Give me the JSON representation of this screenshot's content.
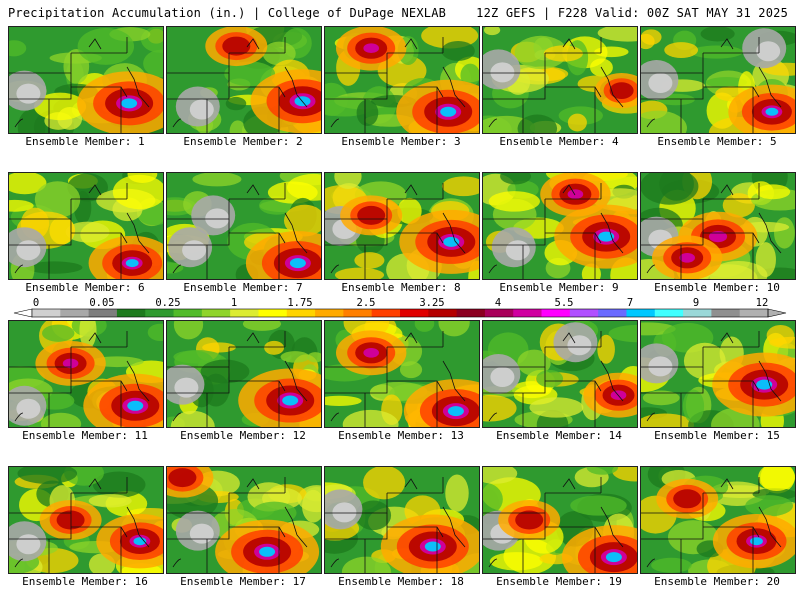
{
  "header": {
    "left": "Precipitation Accumulation (in.) | College of DuPage NEXLAB",
    "right": "12Z GEFS | F228 Valid: 00Z SAT MAY 31 2025"
  },
  "member_prefix": "Ensemble Member: ",
  "members": [
    {
      "id": 1,
      "hot": [
        [
          0.78,
          0.72,
          1.0
        ]
      ],
      "cold": [
        [
          0.1,
          0.6
        ]
      ]
    },
    {
      "id": 2,
      "hot": [
        [
          0.88,
          0.7,
          1.0
        ],
        [
          0.45,
          0.18,
          0.5
        ]
      ],
      "cold": [
        [
          0.2,
          0.75
        ]
      ]
    },
    {
      "id": 3,
      "hot": [
        [
          0.8,
          0.8,
          1.0
        ],
        [
          0.3,
          0.2,
          0.6
        ]
      ],
      "cold": []
    },
    {
      "id": 4,
      "hot": [
        [
          0.9,
          0.6,
          0.4
        ]
      ],
      "cold": [
        [
          0.1,
          0.4
        ]
      ]
    },
    {
      "id": 5,
      "hot": [
        [
          0.85,
          0.8,
          0.8
        ]
      ],
      "cold": [
        [
          0.1,
          0.5
        ],
        [
          0.8,
          0.2
        ]
      ]
    },
    {
      "id": 6,
      "hot": [
        [
          0.8,
          0.85,
          0.8
        ]
      ],
      "cold": [
        [
          0.1,
          0.7
        ]
      ]
    },
    {
      "id": 7,
      "hot": [
        [
          0.85,
          0.85,
          1.0
        ]
      ],
      "cold": [
        [
          0.15,
          0.7
        ],
        [
          0.3,
          0.4
        ]
      ]
    },
    {
      "id": 8,
      "hot": [
        [
          0.82,
          0.65,
          1.0
        ],
        [
          0.3,
          0.4,
          0.5
        ]
      ],
      "cold": [
        [
          0.1,
          0.5
        ]
      ]
    },
    {
      "id": 9,
      "hot": [
        [
          0.8,
          0.6,
          1.0
        ],
        [
          0.6,
          0.2,
          0.6
        ]
      ],
      "cold": [
        [
          0.2,
          0.7
        ]
      ]
    },
    {
      "id": 10,
      "hot": [
        [
          0.5,
          0.6,
          0.7
        ],
        [
          0.3,
          0.8,
          0.6
        ]
      ],
      "cold": [
        [
          0.1,
          0.6
        ]
      ]
    },
    {
      "id": 11,
      "hot": [
        [
          0.82,
          0.8,
          1.0
        ],
        [
          0.4,
          0.4,
          0.6
        ]
      ],
      "cold": [
        [
          0.1,
          0.8
        ]
      ]
    },
    {
      "id": 12,
      "hot": [
        [
          0.8,
          0.75,
          1.0
        ]
      ],
      "cold": [
        [
          0.1,
          0.6
        ]
      ]
    },
    {
      "id": 13,
      "hot": [
        [
          0.85,
          0.85,
          1.0
        ],
        [
          0.3,
          0.3,
          0.6
        ]
      ],
      "cold": []
    },
    {
      "id": 14,
      "hot": [
        [
          0.88,
          0.7,
          0.6
        ]
      ],
      "cold": [
        [
          0.1,
          0.5
        ],
        [
          0.6,
          0.2
        ]
      ]
    },
    {
      "id": 15,
      "hot": [
        [
          0.8,
          0.6,
          1.0
        ]
      ],
      "cold": [
        [
          0.1,
          0.4
        ]
      ]
    },
    {
      "id": 16,
      "hot": [
        [
          0.85,
          0.7,
          0.8
        ],
        [
          0.4,
          0.5,
          0.5
        ]
      ],
      "cold": [
        [
          0.1,
          0.7
        ]
      ]
    },
    {
      "id": 17,
      "hot": [
        [
          0.65,
          0.8,
          1.0
        ],
        [
          0.1,
          0.1,
          0.5
        ]
      ],
      "cold": [
        [
          0.2,
          0.6
        ]
      ]
    },
    {
      "id": 18,
      "hot": [
        [
          0.7,
          0.75,
          1.0
        ]
      ],
      "cold": [
        [
          0.1,
          0.4
        ]
      ]
    },
    {
      "id": 19,
      "hot": [
        [
          0.85,
          0.85,
          1.0
        ],
        [
          0.3,
          0.5,
          0.5
        ]
      ],
      "cold": [
        [
          0.1,
          0.6
        ]
      ]
    },
    {
      "id": 20,
      "hot": [
        [
          0.75,
          0.7,
          0.8
        ],
        [
          0.3,
          0.3,
          0.5
        ]
      ],
      "cold": []
    }
  ],
  "colorbar": {
    "labels": [
      "0",
      "0.05",
      "0.25",
      "1",
      "1.75",
      "2.5",
      "3.25",
      "4",
      "5.5",
      "7",
      "9",
      "12"
    ],
    "colors": [
      "#d0d0d0",
      "#a8a8a8",
      "#7e7e7e",
      "#1e7a1e",
      "#2f9a2f",
      "#52bb2a",
      "#8fd42a",
      "#dcec32",
      "#ffff00",
      "#ffd400",
      "#ffaa00",
      "#ff7f00",
      "#ff4000",
      "#e00000",
      "#b40000",
      "#8b0020",
      "#a8005a",
      "#d000a0",
      "#ff00ff",
      "#b050ff",
      "#6a6aff",
      "#00c8ff",
      "#40ffff",
      "#9ad8d8",
      "#909090",
      "#b0b0b0"
    ]
  }
}
